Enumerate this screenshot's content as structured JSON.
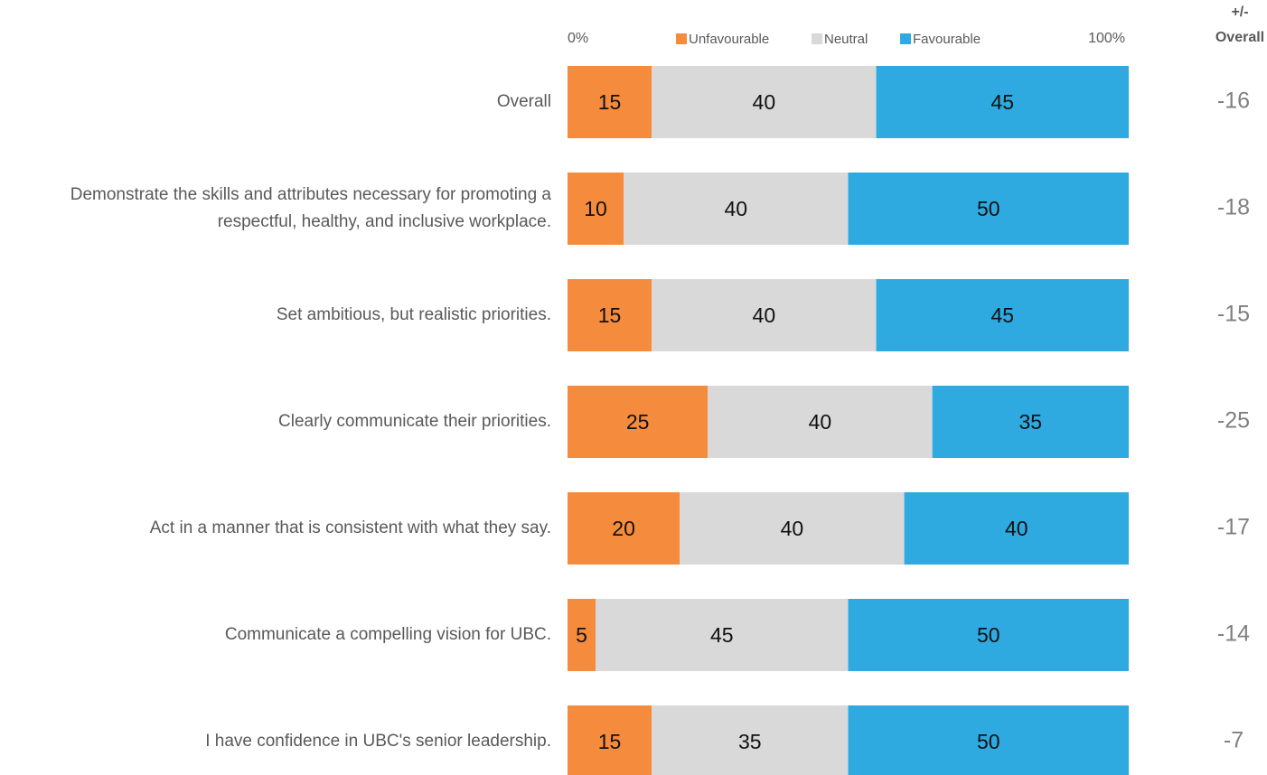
{
  "chart_data": {
    "type": "stacked_barh",
    "categories": [
      "Overall",
      "Demonstrate the skills and attributes necessary for promoting a respectful, healthy, and inclusive workplace.",
      "Set ambitious, but realistic priorities.",
      "Clearly communicate their priorities.",
      "Act in a manner that is consistent with what they say.",
      "Communicate a compelling vision for UBC.",
      "I have confidence in UBC's senior leadership."
    ],
    "series": [
      {
        "name": "Unfavourable",
        "color": "#f58b3c",
        "values": [
          15,
          10,
          15,
          25,
          20,
          5,
          15
        ]
      },
      {
        "name": "Neutral",
        "color": "#d9d9d9",
        "values": [
          40,
          40,
          40,
          40,
          40,
          45,
          35
        ]
      },
      {
        "name": "Favourable",
        "color": "#2eaae1",
        "values": [
          45,
          50,
          45,
          35,
          40,
          50,
          50
        ]
      }
    ],
    "xlim": [
      0,
      100
    ],
    "xticks": [
      {
        "value": 0,
        "label": "0%"
      },
      {
        "value": 100,
        "label": "100%"
      }
    ],
    "legend": "top",
    "overall_diff": {
      "title": [
        "+/-",
        "Overall"
      ],
      "values": [
        -16,
        -18,
        -15,
        -25,
        -17,
        -14,
        -7
      ]
    }
  }
}
